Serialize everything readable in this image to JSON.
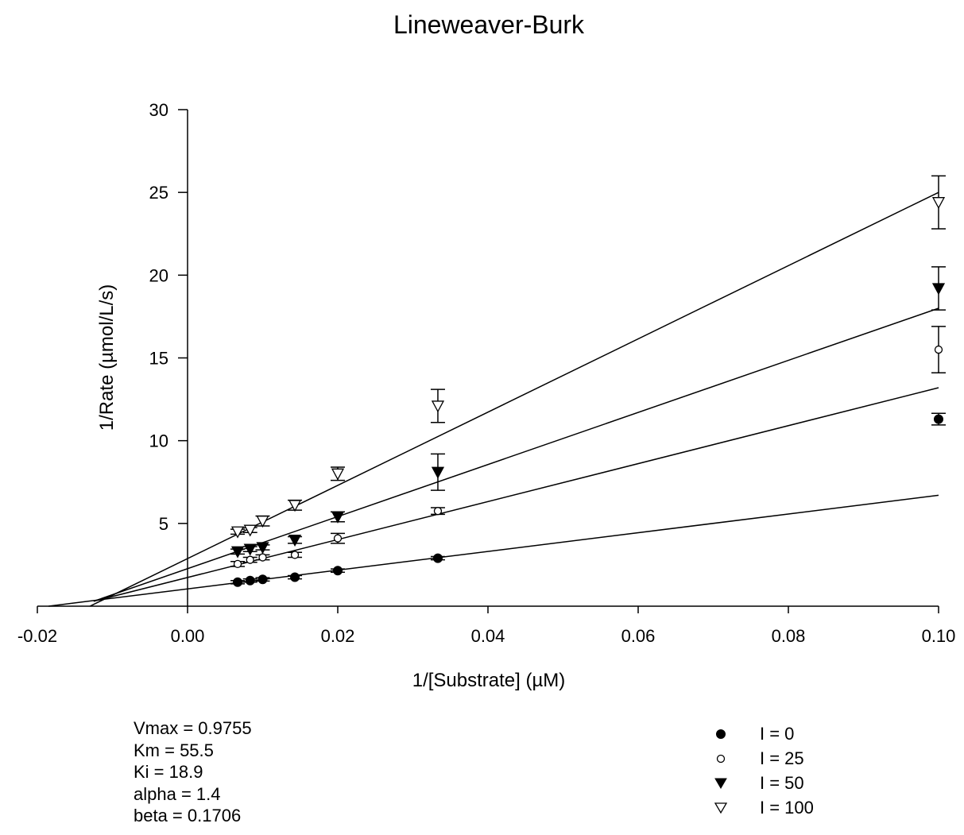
{
  "chart_data": {
    "type": "scatter",
    "title": "Lineweaver-Burk",
    "xlabel": "1/[Substrate] (µM)",
    "ylabel": "1/Rate (µmol/L/s)",
    "xlim": [
      -0.02,
      0.1
    ],
    "ylim": [
      0,
      30
    ],
    "xticks": [
      "-0.02",
      "0.00",
      "0.02",
      "0.04",
      "0.06",
      "0.08",
      "0.10"
    ],
    "yticks": [
      "5",
      "10",
      "15",
      "20",
      "25",
      "30"
    ],
    "grid": false,
    "legend_position": "bottom-right",
    "series": [
      {
        "name": "I = 0",
        "marker": "filled-circle",
        "points": [
          [
            0.00667,
            1.45
          ],
          [
            0.00833,
            1.55
          ],
          [
            0.01,
            1.62
          ],
          [
            0.01429,
            1.75
          ],
          [
            0.02,
            2.15
          ],
          [
            0.03333,
            2.9
          ],
          [
            0.1,
            11.3
          ]
        ],
        "errors": [
          0.1,
          0.1,
          0.1,
          0.1,
          0.1,
          0.1,
          0.35
        ],
        "fit": [
          [
            -0.0185,
            0.0
          ],
          [
            0.1,
            6.7
          ]
        ]
      },
      {
        "name": "I = 25",
        "marker": "open-circle",
        "points": [
          [
            0.00667,
            2.55
          ],
          [
            0.00833,
            2.8
          ],
          [
            0.01,
            2.95
          ],
          [
            0.01429,
            3.1
          ],
          [
            0.02,
            4.1
          ],
          [
            0.03333,
            5.75
          ],
          [
            0.1,
            15.5
          ]
        ],
        "errors": [
          0.15,
          0.15,
          0.15,
          0.15,
          0.3,
          0.2,
          1.4
        ],
        "fit": [
          [
            -0.0125,
            0.3
          ],
          [
            0.1,
            13.2
          ]
        ]
      },
      {
        "name": "I = 50",
        "marker": "filled-triangle-down",
        "points": [
          [
            0.00667,
            3.3
          ],
          [
            0.00833,
            3.45
          ],
          [
            0.01,
            3.55
          ],
          [
            0.01429,
            4.0
          ],
          [
            0.02,
            5.4
          ],
          [
            0.03333,
            8.1
          ],
          [
            0.1,
            19.2
          ]
        ],
        "errors": [
          0.15,
          0.15,
          0.15,
          0.2,
          0.3,
          1.1,
          1.3
        ],
        "fit": [
          [
            -0.0125,
            0.3
          ],
          [
            0.1,
            18.0
          ]
        ]
      },
      {
        "name": "I = 100",
        "marker": "open-triangle-down",
        "points": [
          [
            0.00667,
            4.5
          ],
          [
            0.00833,
            4.6
          ],
          [
            0.01,
            5.15
          ],
          [
            0.01429,
            6.1
          ],
          [
            0.02,
            8.0
          ],
          [
            0.03333,
            12.1
          ],
          [
            0.1,
            24.4
          ]
        ],
        "errors": [
          0.15,
          0.15,
          0.3,
          0.3,
          0.4,
          1.0,
          1.6
        ],
        "fit": [
          [
            -0.013,
            0.0
          ],
          [
            0.1,
            25.0
          ]
        ]
      }
    ]
  },
  "params": [
    "Vmax = 0.9755",
    "Km = 55.5",
    "Ki = 18.9",
    "alpha = 1.4",
    "beta = 0.1706"
  ]
}
